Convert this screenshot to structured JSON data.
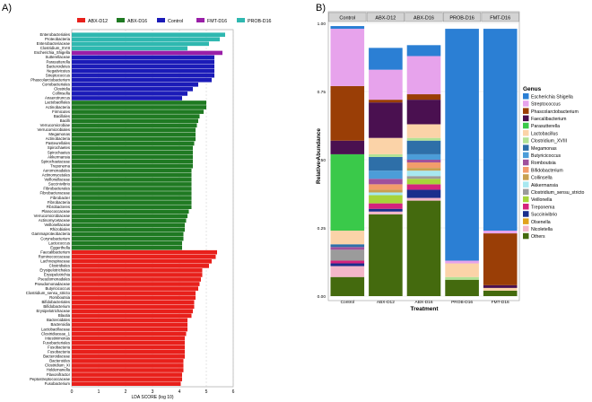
{
  "chart_data": [
    {
      "panel_label": "A)",
      "type": "bar",
      "orientation": "horizontal",
      "xlabel": "LDA SCORE (log 10)",
      "ylabel": "",
      "xlim": [
        0,
        6
      ],
      "xticks": [
        0,
        1,
        2,
        3,
        4,
        5,
        6
      ],
      "grid": true,
      "legend_position": "top",
      "groups": [
        {
          "name": "ABX-D12",
          "color": "#e8201b"
        },
        {
          "name": "ABX-D16",
          "color": "#1f7a22"
        },
        {
          "name": "Control",
          "color": "#1b1bb8"
        },
        {
          "name": "FMT-D16",
          "color": "#9a1fa8"
        },
        {
          "name": "PROB-D16",
          "color": "#2fb8b0"
        }
      ],
      "legend_order": [
        "ABX-D12",
        "ABX-D16",
        "Control",
        "FMT-D16",
        "PROB-D16"
      ],
      "bars": [
        {
          "label": "Enterobacteriales",
          "value": 5.7,
          "group": "PROB-D16"
        },
        {
          "label": "Proteobacteria",
          "value": 5.5,
          "group": "PROB-D16"
        },
        {
          "label": "Enterobacteriaceae",
          "value": 5.1,
          "group": "PROB-D16"
        },
        {
          "label": "Clostridium_XVIII",
          "value": 4.3,
          "group": "PROB-D16"
        },
        {
          "label": "Escherichia_Shigella",
          "value": 5.6,
          "group": "FMT-D16"
        },
        {
          "label": "Sutterellaceae",
          "value": 5.3,
          "group": "Control"
        },
        {
          "label": "Parasutterella",
          "value": 5.3,
          "group": "Control"
        },
        {
          "label": "Bacteroidetes",
          "value": 5.3,
          "group": "Control"
        },
        {
          "label": "Negativicutes",
          "value": 5.3,
          "group": "Control"
        },
        {
          "label": "Streptococcus",
          "value": 5.3,
          "group": "Control"
        },
        {
          "label": "Phascolarctobacterium",
          "value": 5.2,
          "group": "Control"
        },
        {
          "label": "Coriobacteriales",
          "value": 4.7,
          "group": "Control"
        },
        {
          "label": "Clostridia",
          "value": 4.5,
          "group": "Control"
        },
        {
          "label": "Collinsella",
          "value": 4.3,
          "group": "Control"
        },
        {
          "label": "Anaerotruncus",
          "value": 4.1,
          "group": "Control"
        },
        {
          "label": "Lactobacillales",
          "value": 5.0,
          "group": "ABX-D16"
        },
        {
          "label": "Actinobacteria",
          "value": 5.0,
          "group": "ABX-D16"
        },
        {
          "label": "Firmicutes",
          "value": 4.9,
          "group": "ABX-D16"
        },
        {
          "label": "Bacillales",
          "value": 4.75,
          "group": "ABX-D16"
        },
        {
          "label": "Bacilli",
          "value": 4.7,
          "group": "ABX-D16"
        },
        {
          "label": "Verrucomicrobiae",
          "value": 4.65,
          "group": "ABX-D16"
        },
        {
          "label": "Verrucomicrobiales",
          "value": 4.6,
          "group": "ABX-D16"
        },
        {
          "label": "Megamonas",
          "value": 4.6,
          "group": "ABX-D16"
        },
        {
          "label": "Actinobacteria",
          "value": 4.6,
          "group": "ABX-D16"
        },
        {
          "label": "Pasteurellales",
          "value": 4.55,
          "group": "ABX-D16"
        },
        {
          "label": "Spirochaetes",
          "value": 4.5,
          "group": "ABX-D16"
        },
        {
          "label": "Spirochaetes",
          "value": 4.5,
          "group": "ABX-D16"
        },
        {
          "label": "Akkermansia",
          "value": 4.5,
          "group": "ABX-D16"
        },
        {
          "label": "Spirochaetaceae",
          "value": 4.5,
          "group": "ABX-D16"
        },
        {
          "label": "Treponema",
          "value": 4.5,
          "group": "ABX-D16"
        },
        {
          "label": "Aeromonadales",
          "value": 4.45,
          "group": "ABX-D16"
        },
        {
          "label": "Actinomycetales",
          "value": 4.45,
          "group": "ABX-D16"
        },
        {
          "label": "Veillonellaceae",
          "value": 4.45,
          "group": "ABX-D16"
        },
        {
          "label": "Succinivibrio",
          "value": 4.45,
          "group": "ABX-D16"
        },
        {
          "label": "Fibrobacterales",
          "value": 4.45,
          "group": "ABX-D16"
        },
        {
          "label": "Fibrobacteraceae",
          "value": 4.45,
          "group": "ABX-D16"
        },
        {
          "label": "Fibrobacter",
          "value": 4.45,
          "group": "ABX-D16"
        },
        {
          "label": "Fibrobacteria",
          "value": 4.45,
          "group": "ABX-D16"
        },
        {
          "label": "Fibrobacteres",
          "value": 4.45,
          "group": "ABX-D16"
        },
        {
          "label": "Planococcaceae",
          "value": 4.35,
          "group": "ABX-D16"
        },
        {
          "label": "Verrucomicrobiaceae",
          "value": 4.3,
          "group": "ABX-D16"
        },
        {
          "label": "Actinomycetaceae",
          "value": 4.25,
          "group": "ABX-D16"
        },
        {
          "label": "Veillonellaceae",
          "value": 4.2,
          "group": "ABX-D16"
        },
        {
          "label": "Rhizobiales",
          "value": 4.2,
          "group": "ABX-D16"
        },
        {
          "label": "Gammaproteobacteria",
          "value": 4.15,
          "group": "ABX-D16"
        },
        {
          "label": "Corynebacterium",
          "value": 4.15,
          "group": "ABX-D16"
        },
        {
          "label": "Lactococcus",
          "value": 4.1,
          "group": "ABX-D16"
        },
        {
          "label": "Eggerthella",
          "value": 4.1,
          "group": "ABX-D16"
        },
        {
          "label": "Faecalibacterium",
          "value": 5.4,
          "group": "ABX-D12"
        },
        {
          "label": "Ruminococcaceae",
          "value": 5.35,
          "group": "ABX-D12"
        },
        {
          "label": "Lachnospiraceae",
          "value": 5.2,
          "group": "ABX-D12"
        },
        {
          "label": "Clostridiales",
          "value": 5.1,
          "group": "ABX-D12"
        },
        {
          "label": "Erysipelotrichales",
          "value": 4.85,
          "group": "ABX-D12"
        },
        {
          "label": "Erysipelotrichia",
          "value": 4.85,
          "group": "ABX-D12"
        },
        {
          "label": "Pseudomonadales",
          "value": 4.8,
          "group": "ABX-D12"
        },
        {
          "label": "Pseudomonadaceae",
          "value": 4.75,
          "group": "ABX-D12"
        },
        {
          "label": "Butyricicoccus",
          "value": 4.7,
          "group": "ABX-D12"
        },
        {
          "label": "Clostridium_sensu_stricto",
          "value": 4.6,
          "group": "ABX-D12"
        },
        {
          "label": "Romboutsia",
          "value": 4.6,
          "group": "ABX-D12"
        },
        {
          "label": "Bifidobacteriales",
          "value": 4.55,
          "group": "ABX-D12"
        },
        {
          "label": "Bifidobacterium",
          "value": 4.55,
          "group": "ABX-D12"
        },
        {
          "label": "Erysipelotrichaceae",
          "value": 4.5,
          "group": "ABX-D12"
        },
        {
          "label": "Blautia",
          "value": 4.45,
          "group": "ABX-D12"
        },
        {
          "label": "Bacteroidales",
          "value": 4.3,
          "group": "ABX-D12"
        },
        {
          "label": "Bacteroidia",
          "value": 4.3,
          "group": "ABX-D12"
        },
        {
          "label": "Lactobacillaceae",
          "value": 4.3,
          "group": "ABX-D12"
        },
        {
          "label": "Clostridiaceae_1",
          "value": 4.25,
          "group": "ABX-D12"
        },
        {
          "label": "Intestinimonas",
          "value": 4.2,
          "group": "ABX-D12"
        },
        {
          "label": "Fusobacteriales",
          "value": 4.2,
          "group": "ABX-D12"
        },
        {
          "label": "Fusobacteria",
          "value": 4.2,
          "group": "ABX-D12"
        },
        {
          "label": "Fusobacteria",
          "value": 4.2,
          "group": "ABX-D12"
        },
        {
          "label": "Bacteroidaceae",
          "value": 4.2,
          "group": "ABX-D12"
        },
        {
          "label": "Bacteroides",
          "value": 4.15,
          "group": "ABX-D12"
        },
        {
          "label": "Clostridium_XI",
          "value": 4.15,
          "group": "ABX-D12"
        },
        {
          "label": "Holdemanella",
          "value": 4.15,
          "group": "ABX-D12"
        },
        {
          "label": "Flavonifractor",
          "value": 4.1,
          "group": "ABX-D12"
        },
        {
          "label": "Peptostreptococcaceae",
          "value": 4.1,
          "group": "ABX-D12"
        },
        {
          "label": "Fusobacterium",
          "value": 4.05,
          "group": "ABX-D12"
        }
      ]
    },
    {
      "panel_label": "B)",
      "type": "bar",
      "stacked": true,
      "xlabel": "Treatment",
      "ylabel": "Relative Abundance",
      "ylim": [
        0,
        1
      ],
      "yticks": [
        0,
        0.25,
        0.5,
        0.75,
        1
      ],
      "ytick_labels": [
        "0.00",
        "0.25",
        "0.50",
        "0.75",
        "1.00"
      ],
      "grid": true,
      "legend_position": "right",
      "legend_title": "Genus",
      "categories": [
        "Control",
        "ABX-D12",
        "ABX-D16",
        "PROB-D16",
        "FMT-D16"
      ],
      "series": [
        {
          "name": "Escherichia Shigella",
          "color": "#2b7fd4",
          "values": [
            0.01,
            0.08,
            0.04,
            0.85,
            0.74
          ]
        },
        {
          "name": "Streptococcus",
          "color": "#e7a3ec",
          "values": [
            0.21,
            0.11,
            0.14,
            0.01,
            0.01
          ]
        },
        {
          "name": "Phascolarctobacterium",
          "color": "#9a3e06",
          "values": [
            0.2,
            0.01,
            0.02,
            0.0,
            0.19
          ]
        },
        {
          "name": "Faecalibacterium",
          "color": "#4a1050",
          "values": [
            0.05,
            0.13,
            0.09,
            0.0,
            0.01
          ]
        },
        {
          "name": "Parasutterella",
          "color": "#3ac94a",
          "values": [
            0.28,
            0.0,
            0.0,
            0.0,
            0.0
          ]
        },
        {
          "name": "Lactobacillus",
          "color": "#fbd3a8",
          "values": [
            0.05,
            0.06,
            0.05,
            0.05,
            0.01
          ]
        },
        {
          "name": "Clostridium_XVIII",
          "color": "#b2e295",
          "values": [
            0.0,
            0.01,
            0.01,
            0.01,
            0.0
          ]
        },
        {
          "name": "Megamonas",
          "color": "#2e6fa8",
          "values": [
            0.01,
            0.05,
            0.05,
            0.0,
            0.0
          ]
        },
        {
          "name": "Butyricicoccus",
          "color": "#4c9dd8",
          "values": [
            0.0,
            0.03,
            0.02,
            0.0,
            0.0
          ]
        },
        {
          "name": "Romboutsia",
          "color": "#a0509c",
          "values": [
            0.01,
            0.02,
            0.01,
            0.0,
            0.0
          ]
        },
        {
          "name": "Bifidobacterium",
          "color": "#f39c6b",
          "values": [
            0.0,
            0.02,
            0.02,
            0.0,
            0.0
          ]
        },
        {
          "name": "Collinsella",
          "color": "#c8a050",
          "values": [
            0.0,
            0.01,
            0.01,
            0.0,
            0.0
          ]
        },
        {
          "name": "Akkermansia",
          "color": "#a8e8f0",
          "values": [
            0.0,
            0.01,
            0.02,
            0.0,
            0.0
          ]
        },
        {
          "name": "Clostridium_sensu_stricto",
          "color": "#9b9b9b",
          "values": [
            0.04,
            0.0,
            0.01,
            0.0,
            0.0
          ]
        },
        {
          "name": "Veillonella",
          "color": "#a6d43a",
          "values": [
            0.0,
            0.03,
            0.02,
            0.0,
            0.0
          ]
        },
        {
          "name": "Treponema",
          "color": "#d4237d",
          "values": [
            0.01,
            0.02,
            0.02,
            0.0,
            0.0
          ]
        },
        {
          "name": "Succinivibrio",
          "color": "#1a2e8c",
          "values": [
            0.01,
            0.01,
            0.03,
            0.0,
            0.0
          ]
        },
        {
          "name": "Olsenella",
          "color": "#e0a21c",
          "values": [
            0.0,
            0.0,
            0.0,
            0.0,
            0.0
          ]
        },
        {
          "name": "Nicoletella",
          "color": "#f3b6c9",
          "values": [
            0.04,
            0.01,
            0.01,
            0.0,
            0.0
          ]
        },
        {
          "name": "Others",
          "color": "#446a0e",
          "values": [
            0.07,
            0.3,
            0.35,
            0.06,
            0.02
          ]
        }
      ]
    }
  ]
}
